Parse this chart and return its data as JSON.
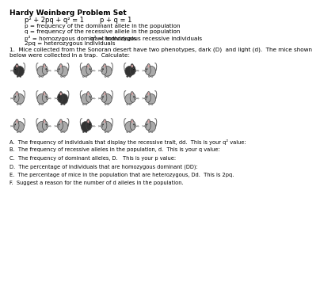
{
  "title": "Hardy Weinberg Problem Set",
  "formula1": "p² + 2pq + q² = 1",
  "formula2": "p + q = 1",
  "line1": "p = frequency of the dominant allele in the population",
  "line2": "q = frequency of the recessive allele in the population",
  "line3a": "p² = homozygous dominant individuals",
  "line3b": "q² = homozygous recessive individuals",
  "line4": "2pq = heterozygous individuals",
  "problem1": "1.  Mice collected from the Sonoran desert have two phenotypes, dark (D)  and light (d).  The mice shown",
  "problem2": "below were collected in a trap.  Calculate:",
  "questions": [
    "A.  The frequency of individuals that display the recessive trait, dd.  This is your q² value:",
    "B.  The frequency of recessive alleles in the population, d.  This is your q value:",
    "C.  The frequency of dominant alleles, D.   This is your p value:",
    "D.  The percentage of individuals that are homozygous dominant (DD):",
    "E.  The percentage of mice in the population that are heterozygous, Dd.  This is 2pq.",
    "F.  Suggest a reason for the number of d alleles in the population."
  ],
  "bg_color": "#ffffff",
  "text_color": "#000000",
  "row1_colors": [
    "#333333",
    "#aaaaaa",
    "#aaaaaa",
    "#aaaaaa",
    "#aaaaaa",
    "#333333",
    "#aaaaaa"
  ],
  "row2_colors": [
    "#aaaaaa",
    "#aaaaaa",
    "#333333",
    "#aaaaaa",
    "#aaaaaa",
    "#aaaaaa",
    "#aaaaaa"
  ],
  "row3_colors": [
    "#aaaaaa",
    "#aaaaaa",
    "#aaaaaa",
    "#333333",
    "#aaaaaa",
    "#aaaaaa",
    "#aaaaaa"
  ]
}
